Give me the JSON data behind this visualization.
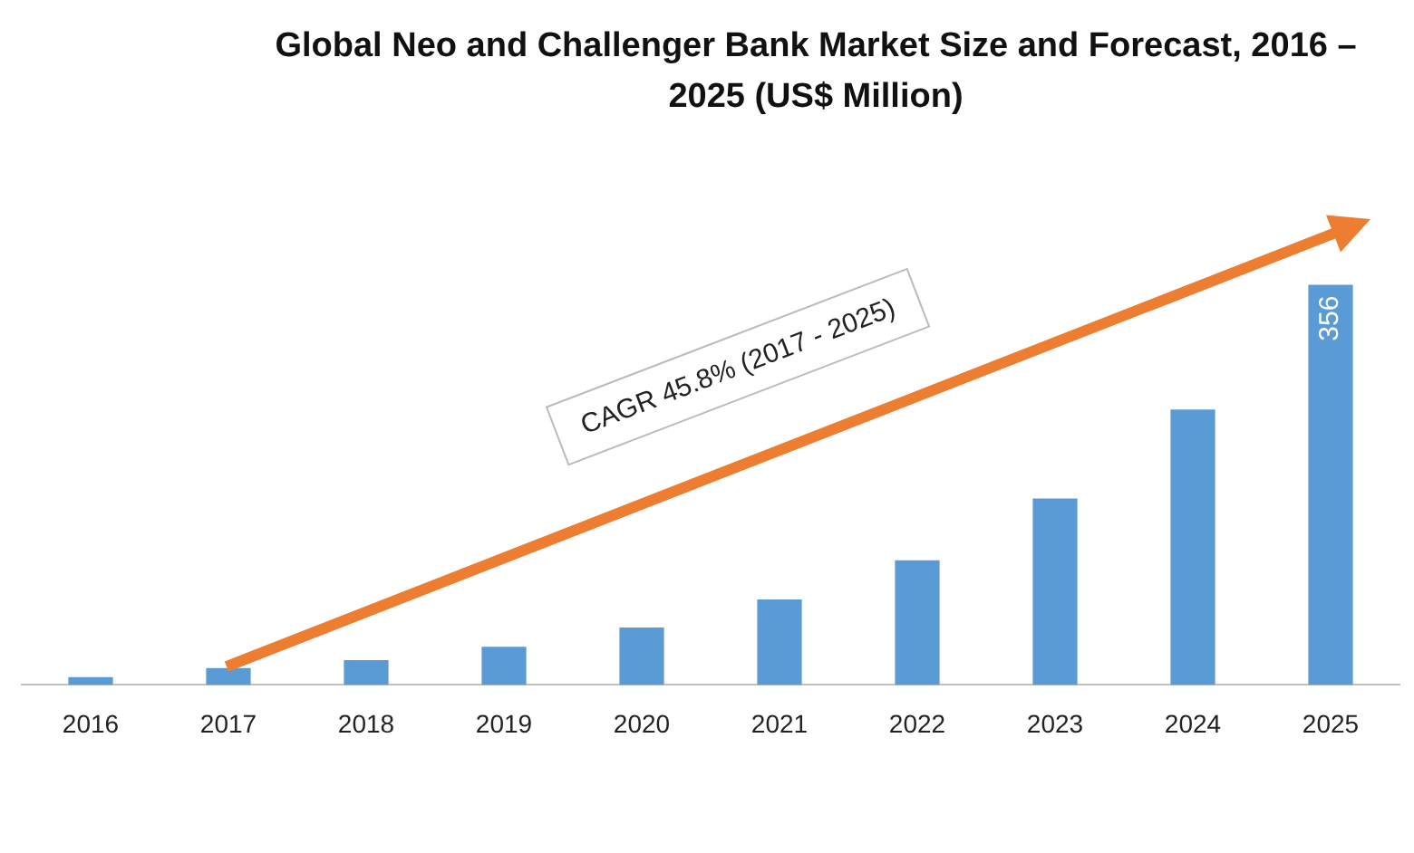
{
  "chart_data": {
    "type": "bar",
    "title": "Global Neo and Challenger Bank Market Size and Forecast, 2016 – 2025 (US$ Million)",
    "categories": [
      "2016",
      "2017",
      "2018",
      "2019",
      "2020",
      "2021",
      "2022",
      "2023",
      "2024",
      "2025"
    ],
    "values": [
      7,
      15,
      22,
      34,
      51,
      76,
      111,
      166,
      245,
      356
    ],
    "value_labels": [
      null,
      null,
      null,
      null,
      null,
      null,
      null,
      null,
      null,
      "356"
    ],
    "color": "#5b9bd5",
    "grid": false,
    "legend": false,
    "annotations": [
      "CAGR 45.8% (2017 - 2025)"
    ]
  }
}
